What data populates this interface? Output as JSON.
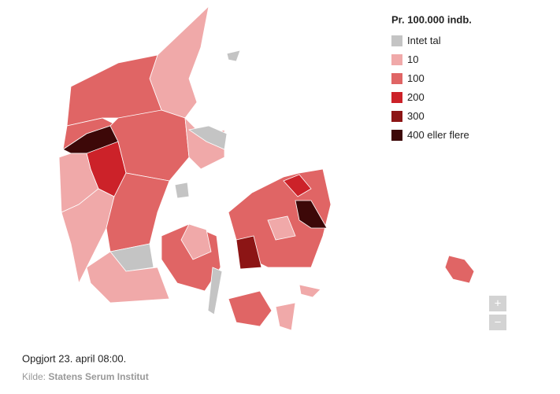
{
  "legend": {
    "title": "Pr. 100.000 indb.",
    "items": [
      {
        "label": "Intet tal",
        "color": "#c4c4c4"
      },
      {
        "label": "10",
        "color": "#f0a9a9"
      },
      {
        "label": "100",
        "color": "#e06565"
      },
      {
        "label": "200",
        "color": "#cc2229"
      },
      {
        "label": "300",
        "color": "#8c1515"
      },
      {
        "label": "400 eller flere",
        "color": "#3d0808"
      }
    ]
  },
  "footer": {
    "updated": "Opgjort 23. april 08:00.",
    "source_prefix": "Kilde:",
    "source": "Statens Serum Institut"
  },
  "zoom": {
    "in": "+",
    "out": "−"
  }
}
